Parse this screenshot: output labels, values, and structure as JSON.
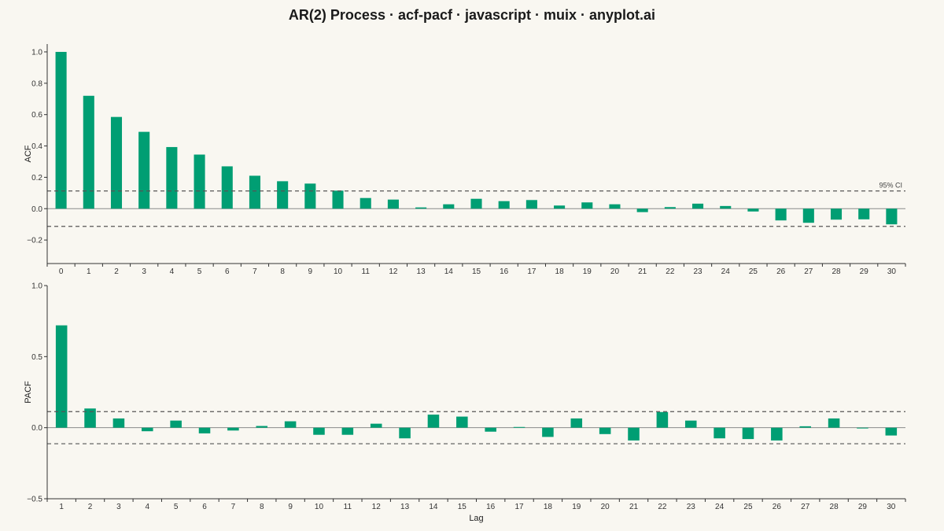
{
  "title": "AR(2) Process · acf-pacf · javascript · muix · anyplot.ai",
  "colors": {
    "background": "#f9f7f1",
    "bar": "#009e73",
    "axis": "#333333",
    "zero_line": "#8a8a8a",
    "ci_line": "#555555"
  },
  "chart_data": [
    {
      "type": "bar",
      "ylabel": "ACF",
      "xlabel": "",
      "ylim": [
        -0.35,
        1.05
      ],
      "yticks": [
        -0.2,
        0.0,
        0.2,
        0.4,
        0.6,
        0.8,
        1.0
      ],
      "ytick_labels": [
        "−0.2",
        "0.0",
        "0.2",
        "0.4",
        "0.6",
        "0.8",
        "1.0"
      ],
      "confidence_interval": 0.113,
      "ci_label": "95% CI",
      "grid": false,
      "categories": [
        "0",
        "1",
        "2",
        "3",
        "4",
        "5",
        "6",
        "7",
        "8",
        "9",
        "10",
        "11",
        "12",
        "13",
        "14",
        "15",
        "16",
        "17",
        "18",
        "19",
        "20",
        "21",
        "22",
        "23",
        "24",
        "25",
        "26",
        "27",
        "28",
        "29",
        "30"
      ],
      "values": [
        1.0,
        0.72,
        0.585,
        0.49,
        0.393,
        0.345,
        0.27,
        0.21,
        0.175,
        0.16,
        0.115,
        0.068,
        0.058,
        0.008,
        0.028,
        0.063,
        0.048,
        0.055,
        0.02,
        0.04,
        0.028,
        -0.022,
        0.01,
        0.032,
        0.017,
        -0.018,
        -0.075,
        -0.09,
        -0.07,
        -0.068,
        -0.1
      ]
    },
    {
      "type": "bar",
      "ylabel": "PACF",
      "xlabel": "Lag",
      "ylim": [
        -0.5,
        1.0
      ],
      "yticks": [
        -0.5,
        0.0,
        0.5,
        1.0
      ],
      "ytick_labels": [
        "−0.5",
        "0.0",
        "0.5",
        "1.0"
      ],
      "confidence_interval": 0.113,
      "grid": false,
      "categories": [
        "1",
        "2",
        "3",
        "4",
        "5",
        "6",
        "7",
        "8",
        "9",
        "10",
        "11",
        "12",
        "13",
        "14",
        "15",
        "16",
        "17",
        "18",
        "19",
        "20",
        "21",
        "22",
        "23",
        "24",
        "25",
        "26",
        "27",
        "28",
        "29",
        "30"
      ],
      "values": [
        0.72,
        0.135,
        0.065,
        -0.025,
        0.05,
        -0.04,
        -0.02,
        0.012,
        0.045,
        -0.05,
        -0.05,
        0.028,
        -0.075,
        0.092,
        0.078,
        -0.028,
        0.005,
        -0.065,
        0.065,
        -0.045,
        -0.09,
        0.11,
        0.05,
        -0.075,
        -0.08,
        -0.09,
        0.01,
        0.065,
        -0.005,
        -0.055
      ]
    }
  ]
}
